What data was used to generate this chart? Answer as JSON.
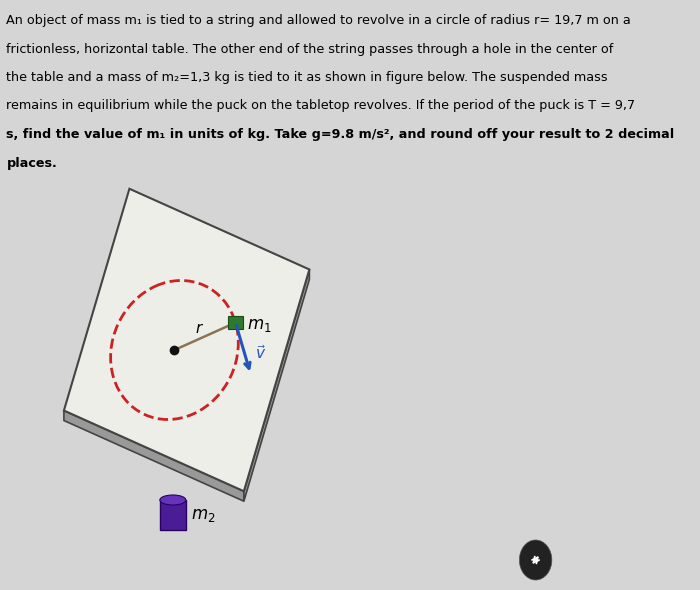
{
  "bg_color": "#d5d5d5",
  "table_color": "#eeeee8",
  "table_edge_color": "#444444",
  "table_depth_color": "#999999",
  "circle_color": "#cc2222",
  "string_color": "#888888",
  "center_dot_color": "#111111",
  "m1_color": "#2d7a2d",
  "m2_color": "#4a1d96",
  "m2_top_color": "#6633bb",
  "velocity_arrow_color": "#2255bb",
  "radius_label": "r",
  "m1_label": "$m_1$",
  "m2_label": "$m_2$",
  "v_label": "$\\vec{v}$",
  "bottom_icon_color": "#222222",
  "line1": "An object of mass m₁ is tied to a string and allowed to revolve in a circle of radius r= 19,7 m on a",
  "line2": "frictionless, horizontal table. The other end of the string passes through a hole in the center of",
  "line3": "the table and a mass of m₂=1,3 kg is tied to it as shown in figure below. The suspended mass",
  "line4": "remains in equilibrium while the puck on the tabletop revolves. If the period of the puck is T = 9,7",
  "line5": "s, find the value of m₁ in units of kg. Take g=9.8 m/s², and round off your result to 2 decimal",
  "line6": "places.",
  "fontsize": 9.2,
  "bold_from": 4
}
